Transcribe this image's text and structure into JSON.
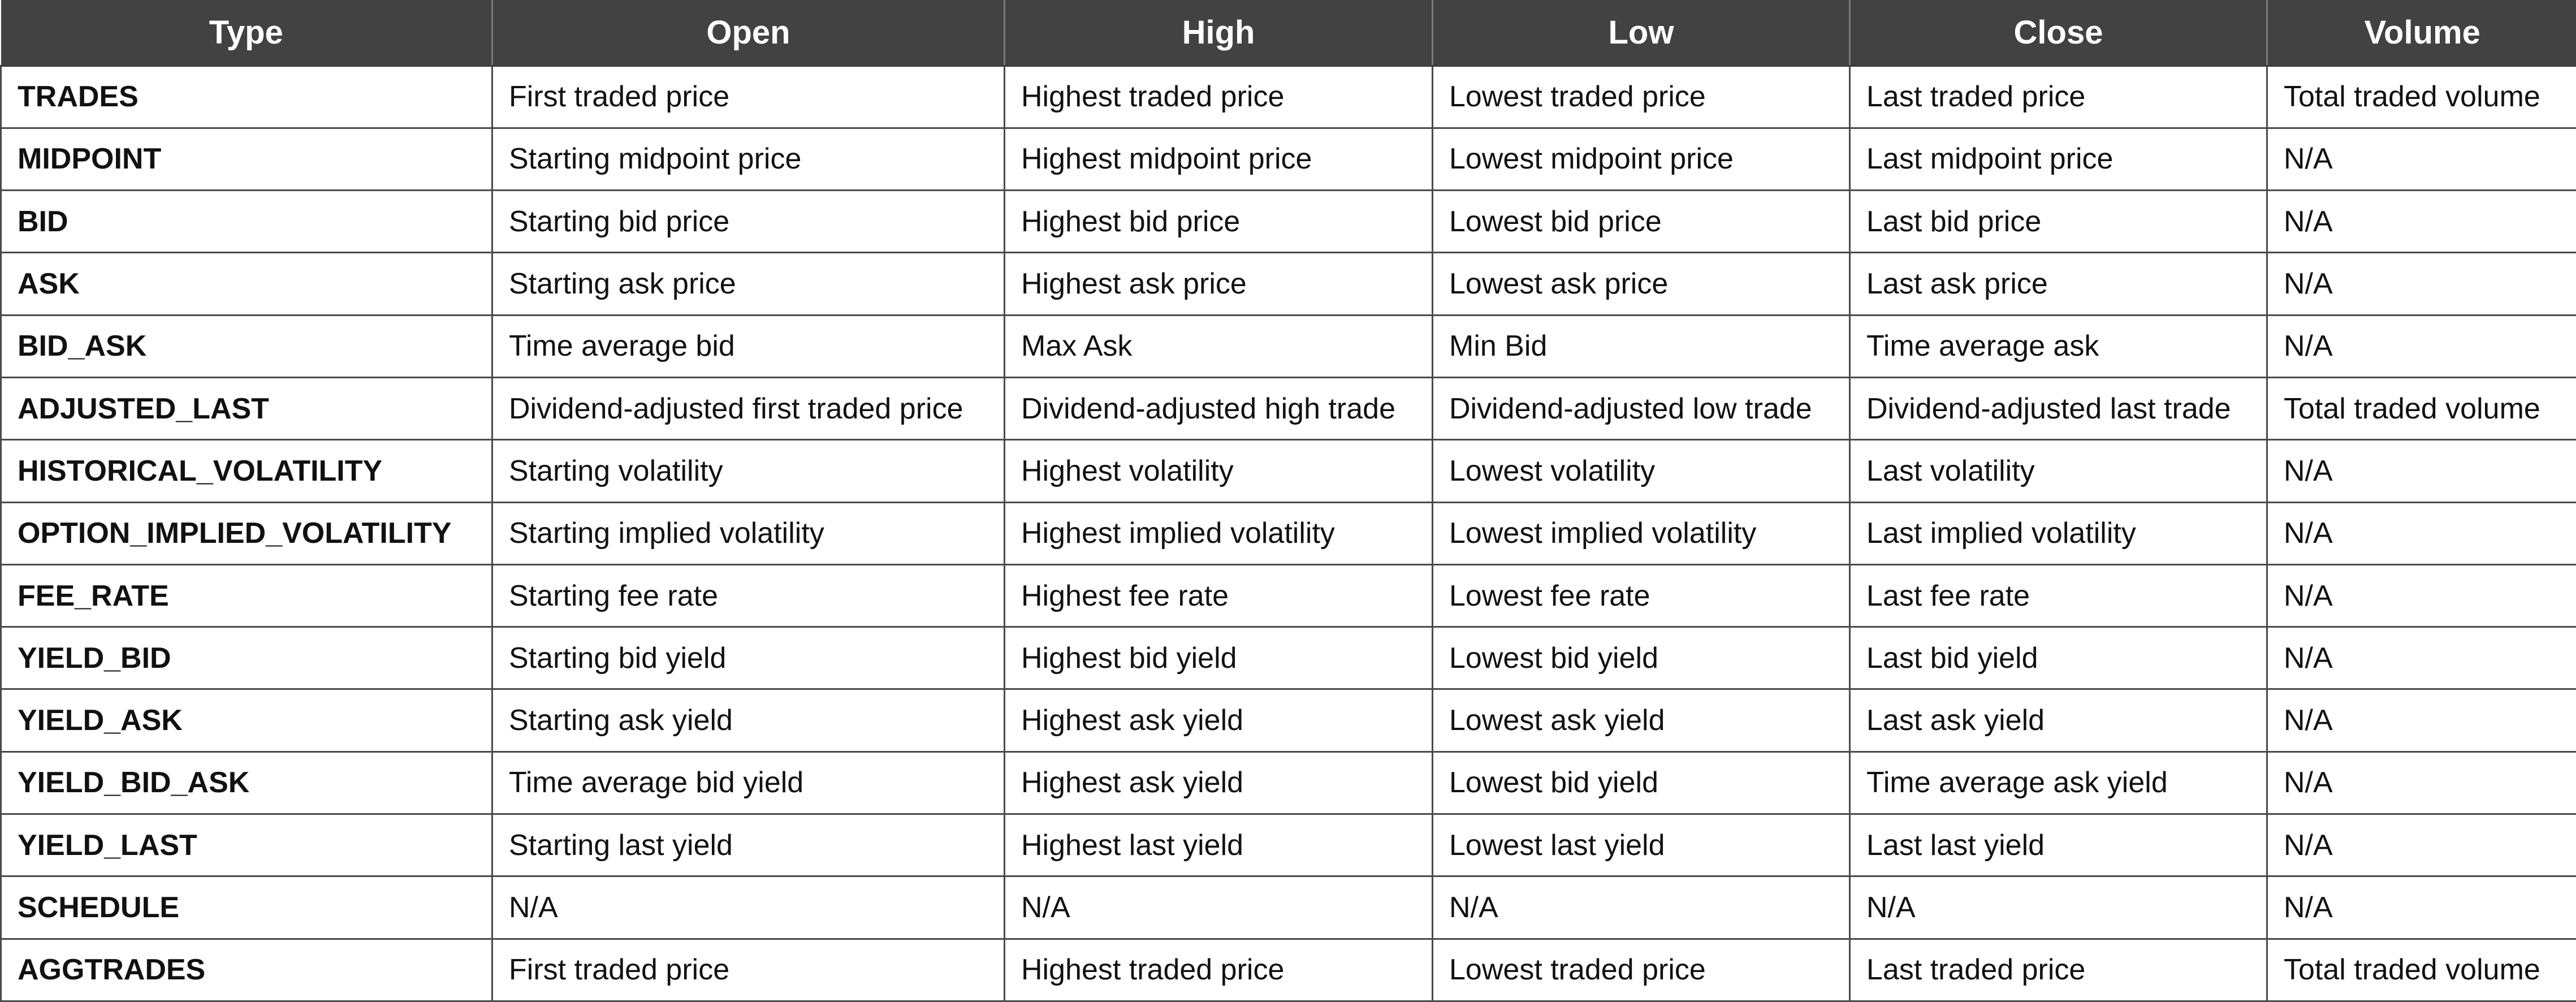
{
  "columns": [
    "Type",
    "Open",
    "High",
    "Low",
    "Close",
    "Volume"
  ],
  "rows": [
    [
      "TRADES",
      "First traded price",
      "Highest traded price",
      "Lowest traded price",
      "Last traded price",
      "Total traded volume"
    ],
    [
      "MIDPOINT",
      "Starting midpoint price",
      "Highest midpoint price",
      "Lowest midpoint price",
      "Last midpoint price",
      "N/A"
    ],
    [
      "BID",
      "Starting bid price",
      "Highest bid price",
      "Lowest bid price",
      "Last bid price",
      "N/A"
    ],
    [
      "ASK",
      "Starting ask price",
      "Highest ask price",
      "Lowest ask price",
      "Last ask price",
      "N/A"
    ],
    [
      "BID_ASK",
      "Time average bid",
      "Max Ask",
      "Min Bid",
      "Time average ask",
      "N/A"
    ],
    [
      "ADJUSTED_LAST",
      "Dividend-adjusted first traded price",
      "Dividend-adjusted high trade",
      "Dividend-adjusted low trade",
      "Dividend-adjusted last trade",
      "Total traded volume"
    ],
    [
      "HISTORICAL_VOLATILITY",
      "Starting volatility",
      "Highest volatility",
      "Lowest volatility",
      "Last volatility",
      "N/A"
    ],
    [
      "OPTION_IMPLIED_VOLATILITY",
      "Starting implied volatility",
      "Highest implied volatility",
      "Lowest implied volatility",
      "Last implied volatility",
      "N/A"
    ],
    [
      "FEE_RATE",
      "Starting fee rate",
      "Highest fee rate",
      "Lowest fee rate",
      "Last fee rate",
      "N/A"
    ],
    [
      "YIELD_BID",
      "Starting bid yield",
      "Highest bid yield",
      "Lowest bid yield",
      "Last bid yield",
      "N/A"
    ],
    [
      "YIELD_ASK",
      "Starting ask yield",
      "Highest ask yield",
      "Lowest ask yield",
      "Last ask yield",
      "N/A"
    ],
    [
      "YIELD_BID_ASK",
      "Time average bid yield",
      "Highest ask yield",
      "Lowest bid yield",
      "Time average ask yield",
      "N/A"
    ],
    [
      "YIELD_LAST",
      "Starting last yield",
      "Highest last yield",
      "Lowest last yield",
      "Last last yield",
      "N/A"
    ],
    [
      "SCHEDULE",
      "N/A",
      "N/A",
      "N/A",
      "N/A",
      "N/A"
    ],
    [
      "AGGTRADES",
      "First traded price",
      "Highest traded price",
      "Lowest traded price",
      "Last traded price",
      "Total traded volume"
    ]
  ]
}
